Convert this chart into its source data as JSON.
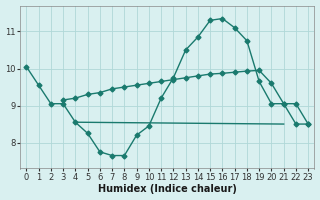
{
  "line1_x": [
    0,
    1,
    2,
    3,
    4,
    5,
    6,
    7,
    8,
    9,
    10,
    11,
    12,
    13,
    14,
    15,
    16,
    17,
    18,
    19,
    20,
    21,
    22,
    23
  ],
  "line1_y": [
    10.05,
    9.55,
    9.05,
    9.05,
    8.55,
    8.25,
    7.75,
    7.65,
    7.65,
    8.2,
    8.45,
    9.2,
    9.75,
    10.5,
    10.85,
    11.3,
    11.35,
    11.1,
    10.75,
    9.65,
    9.05,
    9.05,
    8.5,
    8.5
  ],
  "line2_x": [
    3,
    4,
    5,
    6,
    7,
    8,
    9,
    10,
    11,
    12,
    13,
    14,
    15,
    16,
    17,
    18,
    19,
    20,
    21,
    22,
    23
  ],
  "line2_y": [
    9.15,
    9.2,
    9.3,
    9.35,
    9.45,
    9.5,
    9.55,
    9.6,
    9.65,
    9.7,
    9.75,
    9.8,
    9.85,
    9.87,
    9.9,
    9.93,
    9.95,
    9.6,
    9.05,
    9.05,
    8.5
  ],
  "line3_x": [
    4,
    21
  ],
  "line3_y": [
    8.55,
    8.5
  ],
  "line_color": "#1a7a6e",
  "bg_color": "#d9f0f0",
  "grid_color": "#b0d8d8",
  "xlabel": "Humidex (Indice chaleur)",
  "ylim": [
    7.3,
    11.7
  ],
  "xlim": [
    -0.5,
    23.5
  ],
  "yticks": [
    8,
    9,
    10,
    11
  ],
  "xticks": [
    0,
    1,
    2,
    3,
    4,
    5,
    6,
    7,
    8,
    9,
    10,
    11,
    12,
    13,
    14,
    15,
    16,
    17,
    18,
    19,
    20,
    21,
    22,
    23
  ]
}
